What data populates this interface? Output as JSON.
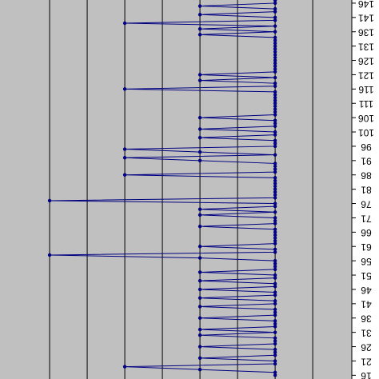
{
  "chart_data": {
    "type": "line",
    "orientation": "rotated",
    "x": [
      16,
      17,
      18,
      19,
      20,
      21,
      22,
      23,
      24,
      25,
      26,
      27,
      28,
      29,
      30,
      31,
      32,
      33,
      34,
      35,
      36,
      37,
      38,
      39,
      40,
      41,
      42,
      43,
      44,
      45,
      46,
      47,
      48,
      49,
      50,
      51,
      52,
      53,
      54,
      55,
      56,
      57,
      58,
      59,
      60,
      61,
      62,
      63,
      64,
      65,
      66,
      67,
      68,
      69,
      70,
      71,
      72,
      73,
      74,
      75,
      76,
      77,
      78,
      79,
      80,
      81,
      82,
      83,
      84,
      85,
      86,
      87,
      88,
      89,
      90,
      91,
      92,
      93,
      94,
      95,
      96,
      97,
      98,
      99,
      100,
      101,
      102,
      103,
      104,
      105,
      106,
      107,
      108,
      109,
      110,
      111,
      112,
      113,
      114,
      115,
      116,
      117,
      118,
      119,
      120,
      121,
      122,
      123,
      124,
      125,
      126,
      127,
      128,
      129,
      130,
      131,
      132,
      133,
      134,
      135,
      136,
      137,
      138,
      139,
      140,
      141,
      142,
      143,
      144,
      145,
      146,
      147
    ],
    "series": [
      {
        "color": "#000080",
        "values": [
          4,
          4,
          3,
          2,
          4,
          4,
          3,
          4,
          4,
          4,
          3,
          4,
          4,
          4,
          3,
          4,
          3,
          4,
          4,
          4,
          3,
          4,
          4,
          4,
          3,
          4,
          4,
          3,
          4,
          4,
          3,
          4,
          4,
          3,
          4,
          4,
          3,
          4,
          4,
          4,
          4,
          3,
          1,
          4,
          4,
          3,
          4,
          4,
          4,
          4,
          4,
          4,
          3,
          4,
          4,
          4,
          3,
          4,
          3,
          4,
          4,
          1,
          4,
          4,
          4,
          4,
          4,
          4,
          4,
          4,
          2,
          4,
          4,
          4,
          4,
          3,
          2,
          4,
          3,
          2,
          4,
          4,
          4,
          3,
          4,
          4,
          3,
          4,
          4,
          4,
          3,
          4,
          4,
          4,
          4,
          4,
          4,
          4,
          4,
          4,
          2,
          4,
          4,
          3,
          4,
          3,
          4,
          4,
          4,
          4,
          4,
          4,
          4,
          4,
          4,
          4,
          4,
          4,
          4,
          3,
          4,
          3,
          4,
          2,
          4,
          4,
          3,
          4,
          4,
          3,
          4,
          4
        ]
      }
    ],
    "xlim": [
      14.7,
      147.1
    ],
    "xticks": [
      16,
      21,
      26,
      31,
      36,
      41,
      46,
      51,
      56,
      61,
      66,
      71,
      76,
      81,
      86,
      91,
      96,
      101,
      106,
      111,
      116,
      121,
      126,
      131,
      136,
      141,
      146
    ],
    "ylim": [
      0.34,
      5.02
    ],
    "yticks": [
      1,
      1.5,
      2,
      2.5,
      3,
      3.5,
      4,
      4.5
    ],
    "grid": true
  }
}
